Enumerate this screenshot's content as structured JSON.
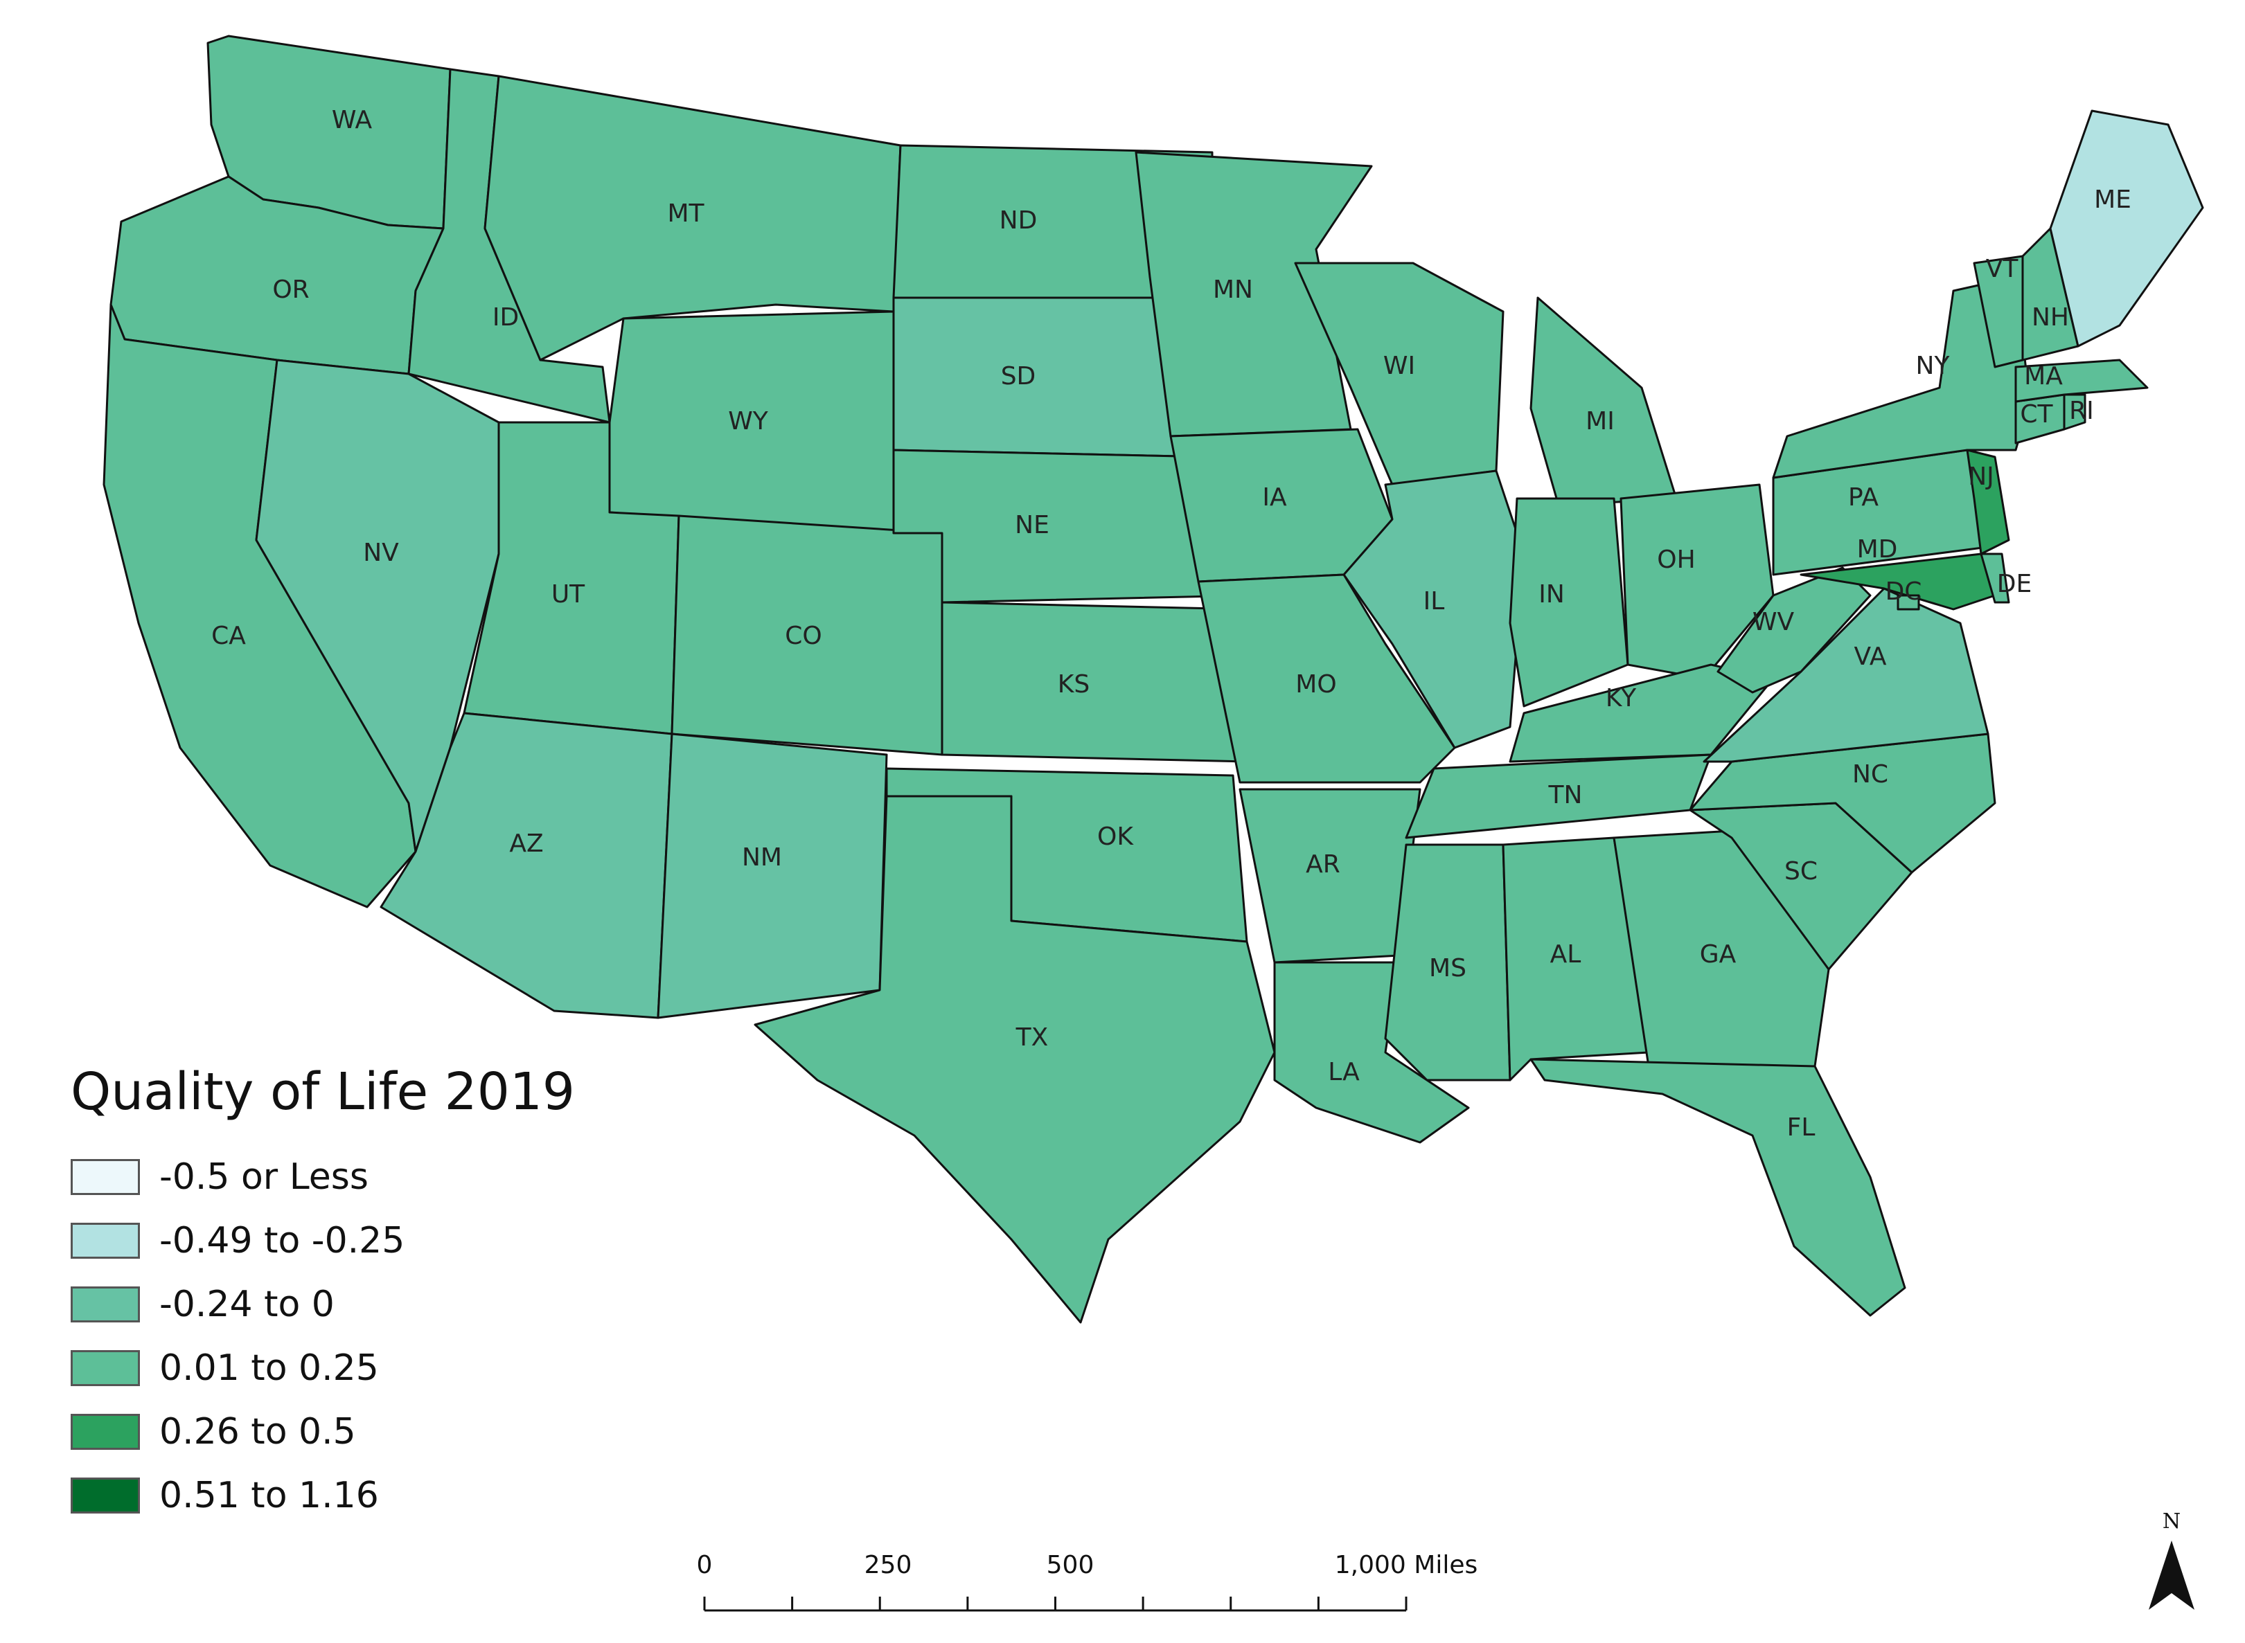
{
  "legend": {
    "title": "Quality of Life 2019",
    "classes": [
      {
        "label": "-0.5 or Less",
        "color": "#edf8fb"
      },
      {
        "label": "-0.49 to -0.25",
        "color": "#b2e2e2"
      },
      {
        "label": "-0.24 to 0",
        "color": "#66c2a4"
      },
      {
        "label": "0.01 to 0.25",
        "color": "#5dbf98"
      },
      {
        "label": "0.26 to 0.5",
        "color": "#2ca25f"
      },
      {
        "label": "0.51 to 1.16",
        "color": "#006d2c"
      }
    ]
  },
  "states": [
    {
      "abbr": "WA"
    },
    {
      "abbr": "OR"
    },
    {
      "abbr": "CA"
    },
    {
      "abbr": "ID"
    },
    {
      "abbr": "NV"
    },
    {
      "abbr": "MT"
    },
    {
      "abbr": "WY"
    },
    {
      "abbr": "UT"
    },
    {
      "abbr": "AZ"
    },
    {
      "abbr": "CO"
    },
    {
      "abbr": "NM"
    },
    {
      "abbr": "ND"
    },
    {
      "abbr": "SD"
    },
    {
      "abbr": "NE"
    },
    {
      "abbr": "KS"
    },
    {
      "abbr": "OK"
    },
    {
      "abbr": "TX"
    },
    {
      "abbr": "MN"
    },
    {
      "abbr": "IA"
    },
    {
      "abbr": "MO"
    },
    {
      "abbr": "AR"
    },
    {
      "abbr": "LA"
    },
    {
      "abbr": "WI"
    },
    {
      "abbr": "IL"
    },
    {
      "abbr": "MI"
    },
    {
      "abbr": "IN"
    },
    {
      "abbr": "OH"
    },
    {
      "abbr": "KY"
    },
    {
      "abbr": "TN"
    },
    {
      "abbr": "MS"
    },
    {
      "abbr": "AL"
    },
    {
      "abbr": "GA"
    },
    {
      "abbr": "FL"
    },
    {
      "abbr": "SC"
    },
    {
      "abbr": "NC"
    },
    {
      "abbr": "VA"
    },
    {
      "abbr": "WV"
    },
    {
      "abbr": "PA"
    },
    {
      "abbr": "NY"
    },
    {
      "abbr": "MD"
    },
    {
      "abbr": "DE"
    },
    {
      "abbr": "DC"
    },
    {
      "abbr": "NJ"
    },
    {
      "abbr": "CT"
    },
    {
      "abbr": "RI"
    },
    {
      "abbr": "MA"
    },
    {
      "abbr": "VT"
    },
    {
      "abbr": "NH"
    },
    {
      "abbr": "ME"
    }
  ],
  "scale_bar": {
    "labels": [
      "0",
      "250",
      "500",
      "1,000 Miles"
    ]
  },
  "north_arrow": {
    "label": "N"
  },
  "colors": {
    "state_border": "#111111",
    "county_border": "#5f6b68"
  }
}
